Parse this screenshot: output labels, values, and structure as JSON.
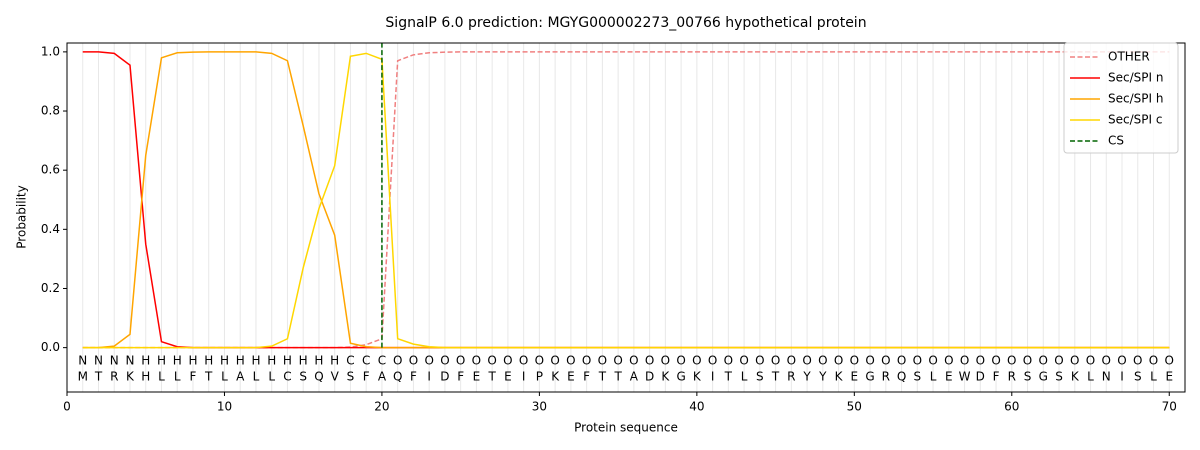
{
  "chart_data": {
    "type": "line",
    "title": "SignalP 6.0 prediction: MGYG000002273_00766 hypothetical protein",
    "xlabel": "Protein sequence",
    "ylabel": "Probability",
    "x": [
      1,
      2,
      3,
      4,
      5,
      6,
      7,
      8,
      9,
      10,
      11,
      12,
      13,
      14,
      15,
      16,
      17,
      18,
      19,
      20,
      21,
      22,
      23,
      24,
      25,
      26,
      27,
      28,
      29,
      30,
      31,
      32,
      33,
      34,
      35,
      36,
      37,
      38,
      39,
      40,
      41,
      42,
      43,
      44,
      45,
      46,
      47,
      48,
      49,
      50,
      51,
      52,
      53,
      54,
      55,
      56,
      57,
      58,
      59,
      60,
      61,
      62,
      63,
      64,
      65,
      66,
      67,
      68,
      69,
      70
    ],
    "residues": [
      "M",
      "T",
      "R",
      "K",
      "H",
      "L",
      "L",
      "F",
      "T",
      "L",
      "A",
      "L",
      "L",
      "C",
      "S",
      "Q",
      "V",
      "S",
      "F",
      "A",
      "Q",
      "F",
      "I",
      "D",
      "F",
      "E",
      "T",
      "E",
      "I",
      "P",
      "K",
      "E",
      "F",
      "T",
      "T",
      "A",
      "D",
      "K",
      "G",
      "K",
      "I",
      "T",
      "L",
      "S",
      "T",
      "R",
      "Y",
      "Y",
      "K",
      "E",
      "G",
      "R",
      "Q",
      "S",
      "L",
      "E",
      "W",
      "D",
      "F",
      "R",
      "S",
      "G",
      "S",
      "K",
      "L",
      "N",
      "I",
      "S",
      "L",
      "E"
    ],
    "regions": [
      "N",
      "N",
      "N",
      "N",
      "H",
      "H",
      "H",
      "H",
      "H",
      "H",
      "H",
      "H",
      "H",
      "H",
      "H",
      "H",
      "H",
      "C",
      "C",
      "C",
      "O",
      "O",
      "O",
      "O",
      "O",
      "O",
      "O",
      "O",
      "O",
      "O",
      "O",
      "O",
      "O",
      "O",
      "O",
      "O",
      "O",
      "O",
      "O",
      "O",
      "O",
      "O",
      "O",
      "O",
      "O",
      "O",
      "O",
      "O",
      "O",
      "O",
      "O",
      "O",
      "O",
      "O",
      "O",
      "O",
      "O",
      "O",
      "O",
      "O",
      "O",
      "O",
      "O",
      "O",
      "O",
      "O",
      "O",
      "O",
      "O",
      "O"
    ],
    "region_colors": {
      "N": "#ff0000",
      "H": "#ffa500",
      "C": "#ffd700",
      "O": "#808080"
    },
    "series": [
      {
        "name": "OTHER",
        "color": "#f08080",
        "dashed": true,
        "values": [
          0,
          0,
          0,
          0,
          0,
          0,
          0,
          0,
          0,
          0,
          0,
          0,
          0,
          0,
          0,
          0,
          0,
          0.002,
          0.01,
          0.03,
          0.97,
          0.99,
          0.997,
          0.999,
          1,
          1,
          1,
          1,
          1,
          1,
          1,
          1,
          1,
          1,
          1,
          1,
          1,
          1,
          1,
          1,
          1,
          1,
          1,
          1,
          1,
          1,
          1,
          1,
          1,
          1,
          1,
          1,
          1,
          1,
          1,
          1,
          1,
          1,
          1,
          1,
          1,
          1,
          1,
          1,
          1,
          1,
          1,
          1,
          1,
          1
        ]
      },
      {
        "name": "Sec/SPI n",
        "color": "#ff0000",
        "values": [
          1,
          1,
          0.995,
          0.955,
          0.35,
          0.02,
          0.003,
          0,
          0,
          0,
          0,
          0,
          0,
          0,
          0,
          0,
          0,
          0,
          0,
          0,
          0,
          0,
          0,
          0,
          0,
          0,
          0,
          0,
          0,
          0,
          0,
          0,
          0,
          0,
          0,
          0,
          0,
          0,
          0,
          0,
          0,
          0,
          0,
          0,
          0,
          0,
          0,
          0,
          0,
          0,
          0,
          0,
          0,
          0,
          0,
          0,
          0,
          0,
          0,
          0,
          0,
          0,
          0,
          0,
          0,
          0,
          0,
          0,
          0,
          0
        ]
      },
      {
        "name": "Sec/SPI h",
        "color": "#ffa500",
        "values": [
          0,
          0,
          0.005,
          0.045,
          0.65,
          0.98,
          0.997,
          0.999,
          1,
          1,
          1,
          1,
          0.995,
          0.97,
          0.75,
          0.52,
          0.38,
          0.015,
          0.003,
          0,
          0,
          0,
          0,
          0,
          0,
          0,
          0,
          0,
          0,
          0,
          0,
          0,
          0,
          0,
          0,
          0,
          0,
          0,
          0,
          0,
          0,
          0,
          0,
          0,
          0,
          0,
          0,
          0,
          0,
          0,
          0,
          0,
          0,
          0,
          0,
          0,
          0,
          0,
          0,
          0,
          0,
          0,
          0,
          0,
          0,
          0,
          0,
          0,
          0,
          0
        ]
      },
      {
        "name": "Sec/SPI c",
        "color": "#ffd700",
        "values": [
          0,
          0,
          0,
          0,
          0,
          0,
          0,
          0,
          0,
          0,
          0,
          0,
          0.005,
          0.03,
          0.27,
          0.47,
          0.615,
          0.985,
          0.995,
          0.975,
          0.03,
          0.012,
          0.003,
          0,
          0,
          0,
          0,
          0,
          0,
          0,
          0,
          0,
          0,
          0,
          0,
          0,
          0,
          0,
          0,
          0,
          0,
          0,
          0,
          0,
          0,
          0,
          0,
          0,
          0,
          0,
          0,
          0,
          0,
          0,
          0,
          0,
          0,
          0,
          0,
          0,
          0,
          0,
          0,
          0,
          0,
          0,
          0,
          0,
          0,
          0
        ]
      },
      {
        "name": "CS",
        "color": "#006400",
        "dashed": true,
        "position": 20
      }
    ],
    "xlim": [
      0,
      71
    ],
    "ylim": [
      -0.15,
      1.03
    ],
    "xticks": [
      0,
      10,
      20,
      30,
      40,
      50,
      60,
      70
    ],
    "yticks": [
      {
        "value": 0,
        "label": "0.0"
      },
      0.2,
      0.4,
      0.6,
      0.8,
      {
        "value": 1,
        "label": "1.0"
      }
    ],
    "legend": "upper right"
  }
}
